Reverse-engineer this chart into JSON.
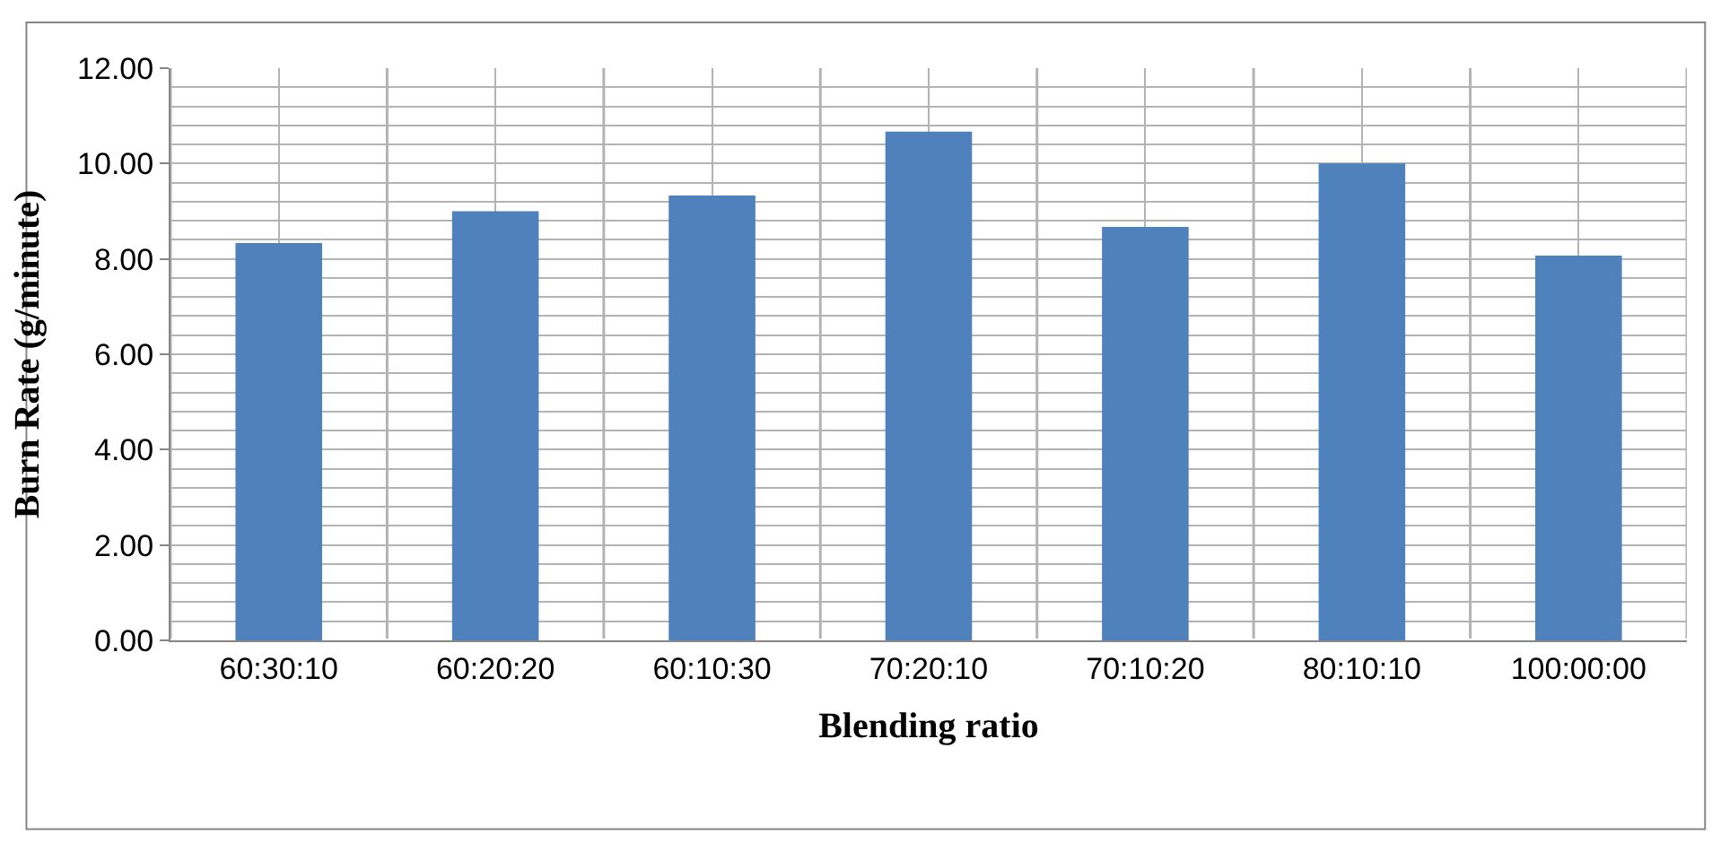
{
  "chart_data": {
    "type": "bar",
    "xlabel": "Blending ratio",
    "ylabel": "Burn Rate (g/minute)",
    "categories": [
      "60:30:10",
      "60:20:20",
      "60:10:30",
      "70:20:10",
      "70:10:20",
      "80:10:10",
      "100:00:00"
    ],
    "values": [
      8.33,
      9.0,
      9.33,
      10.67,
      8.67,
      10.0,
      8.07
    ],
    "color": "#4f81bd",
    "ylim": [
      0,
      12
    ],
    "yticks": [
      {
        "value": 0,
        "label": "0.00"
      },
      {
        "value": 2,
        "label": "2.00"
      },
      {
        "value": 4,
        "label": "4.00"
      },
      {
        "value": 6,
        "label": "6.00"
      },
      {
        "value": 8,
        "label": "8.00"
      },
      {
        "value": 10,
        "label": "10.00"
      },
      {
        "value": 12,
        "label": "12.00"
      }
    ],
    "grid": true
  }
}
